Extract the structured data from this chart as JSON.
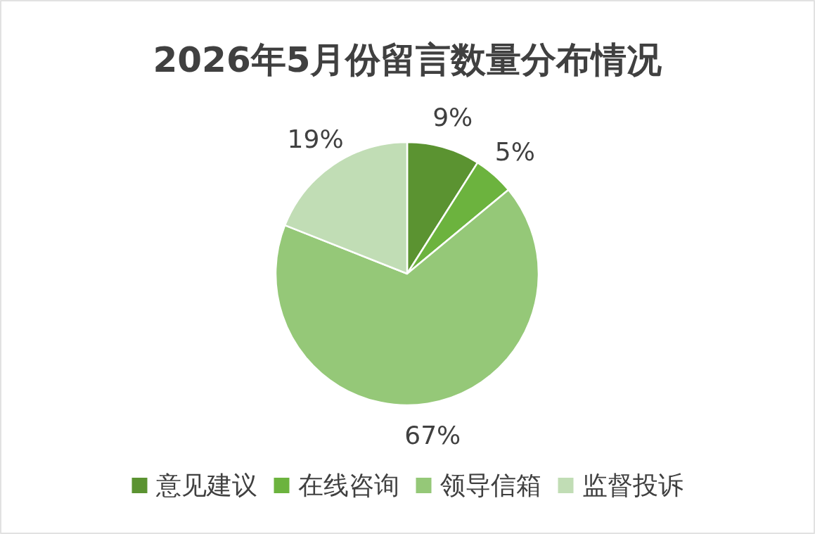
{
  "chart_data": {
    "type": "pie",
    "title": "2026年5月份留言数量分布情况",
    "categories": [
      "意见建议",
      "在线咨询",
      "领导信箱",
      "监督投诉"
    ],
    "values": [
      9,
      5,
      67,
      19
    ],
    "colors": [
      "#5b9331",
      "#6cb33e",
      "#95c878",
      "#c1ddb5"
    ],
    "value_labels": [
      "9%",
      "5%",
      "67%",
      "19%"
    ],
    "legend": "bottom"
  }
}
